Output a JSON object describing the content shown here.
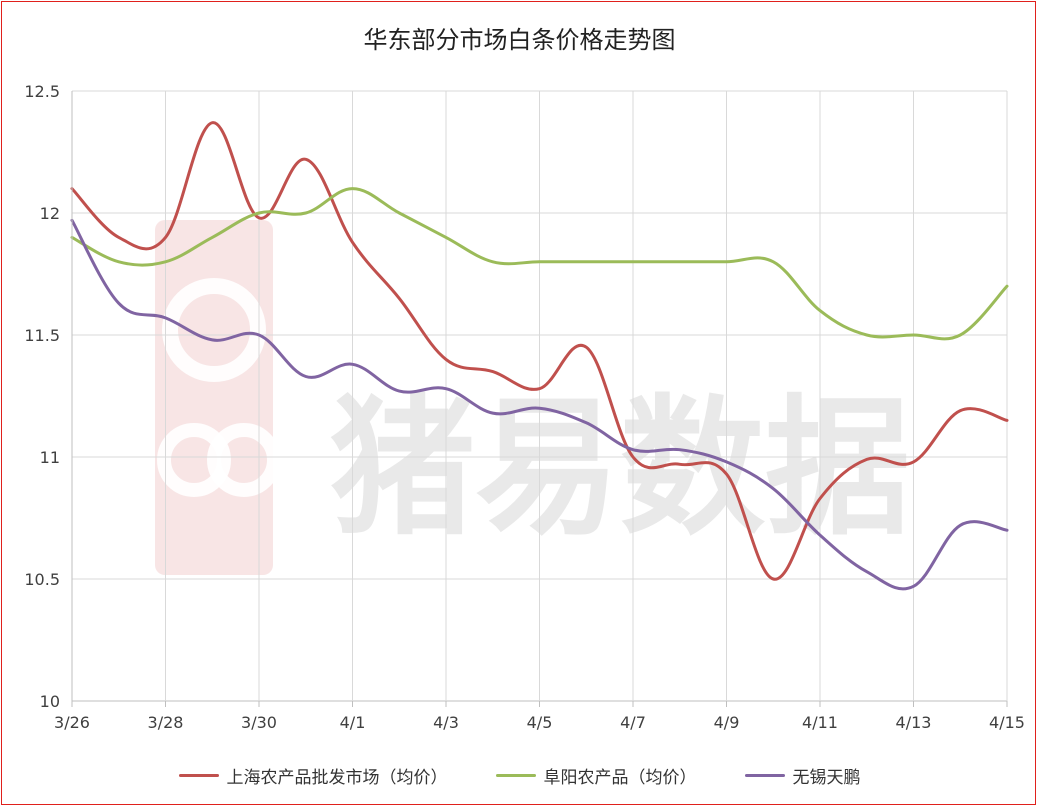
{
  "chart_data": {
    "type": "line",
    "title": "华东部分市场白条价格走势图",
    "watermark": "猪易数据",
    "x": [
      "3/26",
      "3/27",
      "3/28",
      "3/29",
      "3/30",
      "3/31",
      "4/1",
      "4/2",
      "4/3",
      "4/4",
      "4/5",
      "4/6",
      "4/7",
      "4/8",
      "4/9",
      "4/10",
      "4/11",
      "4/12",
      "4/13",
      "4/14",
      "4/15"
    ],
    "x_tick_labels": [
      "3/26",
      "3/28",
      "3/30",
      "4/1",
      "4/3",
      "4/5",
      "4/7",
      "4/9",
      "4/11",
      "4/13",
      "4/15"
    ],
    "ylim": [
      10,
      12.5
    ],
    "y_ticks": [
      "10",
      "10.5",
      "11",
      "11.5",
      "12",
      "12.5"
    ],
    "grid": true,
    "legend_position": "bottom",
    "series": [
      {
        "name": "上海农产品批发市场（均价）",
        "color": "#c0504d",
        "values": [
          12.1,
          11.9,
          11.9,
          12.37,
          11.98,
          12.22,
          11.88,
          11.65,
          11.4,
          11.35,
          11.28,
          11.45,
          11.0,
          10.97,
          10.93,
          10.5,
          10.83,
          10.99,
          10.98,
          11.19,
          11.15
        ]
      },
      {
        "name": "阜阳农产品（均价）",
        "color": "#9bbb59",
        "values": [
          11.9,
          11.8,
          11.8,
          11.9,
          12.0,
          12.0,
          12.1,
          12.0,
          11.9,
          11.8,
          11.8,
          11.8,
          11.8,
          11.8,
          11.8,
          11.8,
          11.6,
          11.5,
          11.5,
          11.5,
          11.7
        ]
      },
      {
        "name": "无锡天鹏",
        "color": "#8064a2",
        "values": [
          11.97,
          11.63,
          11.57,
          11.48,
          11.5,
          11.33,
          11.38,
          11.27,
          11.28,
          11.18,
          11.2,
          11.14,
          11.03,
          11.03,
          10.98,
          10.87,
          10.68,
          10.53,
          10.47,
          10.72,
          10.7
        ]
      }
    ]
  }
}
